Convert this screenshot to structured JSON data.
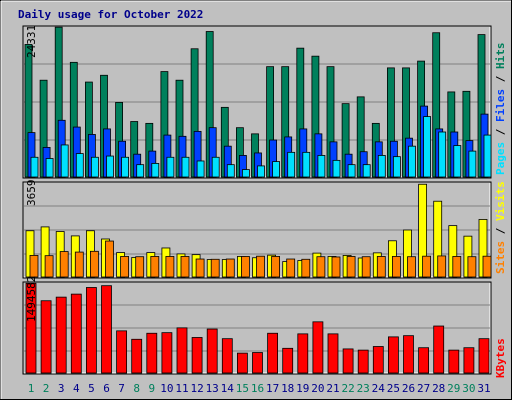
{
  "title": "Daily usage for October 2022",
  "colors": {
    "hits": "#00805c",
    "files": "#0040ff",
    "pages": "#00e0ff",
    "visits": "#ffff00",
    "sites": "#ff8000",
    "kbytes": "#ff0000",
    "weekday_label": "#00008b",
    "weekend_label": "#00805c"
  },
  "chart_data": [
    {
      "type": "bar",
      "categories": [
        "1",
        "2",
        "3",
        "4",
        "5",
        "6",
        "7",
        "8",
        "9",
        "10",
        "11",
        "12",
        "13",
        "14",
        "15",
        "16",
        "17",
        "18",
        "19",
        "20",
        "21",
        "22",
        "23",
        "24",
        "25",
        "26",
        "27",
        "28",
        "29",
        "30",
        "31"
      ],
      "weekend_days": [
        "1",
        "2",
        "8",
        "9",
        "15",
        "16",
        "22",
        "23",
        "29",
        "30"
      ],
      "ylabel": "24331",
      "ylim": [
        0,
        24331
      ],
      "legend": [
        "Pages",
        "Files",
        "Hits"
      ],
      "series": [
        {
          "name": "Hits",
          "values": [
            21500,
            15700,
            24300,
            18600,
            15400,
            16500,
            12100,
            9000,
            8700,
            17100,
            15700,
            20800,
            23600,
            11300,
            8000,
            7000,
            17900,
            17900,
            20900,
            19600,
            17900,
            11900,
            13000,
            8700,
            17700,
            17700,
            18800,
            23400,
            13800,
            13900,
            23100
          ]
        },
        {
          "name": "Files",
          "values": [
            7200,
            4800,
            9200,
            8100,
            6900,
            7800,
            5800,
            3700,
            4200,
            6800,
            6600,
            7400,
            8000,
            5000,
            3500,
            3900,
            6000,
            6500,
            7800,
            7000,
            5700,
            3700,
            4100,
            5700,
            5800,
            6300,
            11500,
            7800,
            7300,
            5900,
            10200
          ]
        },
        {
          "name": "Pages",
          "values": [
            3200,
            3000,
            5200,
            3800,
            3200,
            3400,
            3200,
            2000,
            2200,
            3200,
            3200,
            2600,
            3200,
            2000,
            1200,
            1800,
            2500,
            4000,
            4000,
            3500,
            2700,
            2000,
            2000,
            3500,
            3300,
            5000,
            9800,
            7300,
            5100,
            4200,
            6800
          ]
        }
      ]
    },
    {
      "type": "bar",
      "categories": [
        "1",
        "2",
        "3",
        "4",
        "5",
        "6",
        "7",
        "8",
        "9",
        "10",
        "11",
        "12",
        "13",
        "14",
        "15",
        "16",
        "17",
        "18",
        "19",
        "20",
        "21",
        "22",
        "23",
        "24",
        "25",
        "26",
        "27",
        "28",
        "29",
        "30",
        "31"
      ],
      "ylabel": "3659",
      "ylim": [
        0,
        3659
      ],
      "legend": [
        "Sites",
        "Visits"
      ],
      "series": [
        {
          "name": "Visits",
          "values": [
            1800,
            1950,
            1770,
            1600,
            1800,
            1480,
            950,
            760,
            950,
            1130,
            900,
            870,
            680,
            680,
            800,
            750,
            850,
            600,
            640,
            930,
            800,
            840,
            740,
            940,
            1410,
            1830,
            3610,
            2950,
            2000,
            1590,
            2240
          ]
        },
        {
          "name": "Sites",
          "values": [
            840,
            830,
            990,
            970,
            1000,
            1400,
            800,
            790,
            800,
            800,
            800,
            700,
            690,
            700,
            800,
            810,
            800,
            700,
            690,
            790,
            780,
            800,
            790,
            800,
            800,
            790,
            810,
            820,
            800,
            790,
            810
          ]
        }
      ]
    },
    {
      "type": "bar",
      "categories": [
        "1",
        "2",
        "3",
        "4",
        "5",
        "6",
        "7",
        "8",
        "9",
        "10",
        "11",
        "12",
        "13",
        "14",
        "15",
        "16",
        "17",
        "18",
        "19",
        "20",
        "21",
        "22",
        "23",
        "24",
        "25",
        "26",
        "27",
        "28",
        "29",
        "30",
        "31"
      ],
      "ylabel": "1494582",
      "ylim": [
        0,
        1494582
      ],
      "legend": [
        "KBytes"
      ],
      "series": [
        {
          "name": "KBytes",
          "values": [
            1490000,
            1200000,
            1260000,
            1310000,
            1420000,
            1450000,
            700000,
            560000,
            660000,
            670000,
            750000,
            590000,
            730000,
            570000,
            330000,
            340000,
            660000,
            410000,
            650000,
            850000,
            650000,
            400000,
            380000,
            440000,
            600000,
            620000,
            420000,
            780000,
            380000,
            420000,
            570000
          ]
        }
      ]
    }
  ]
}
